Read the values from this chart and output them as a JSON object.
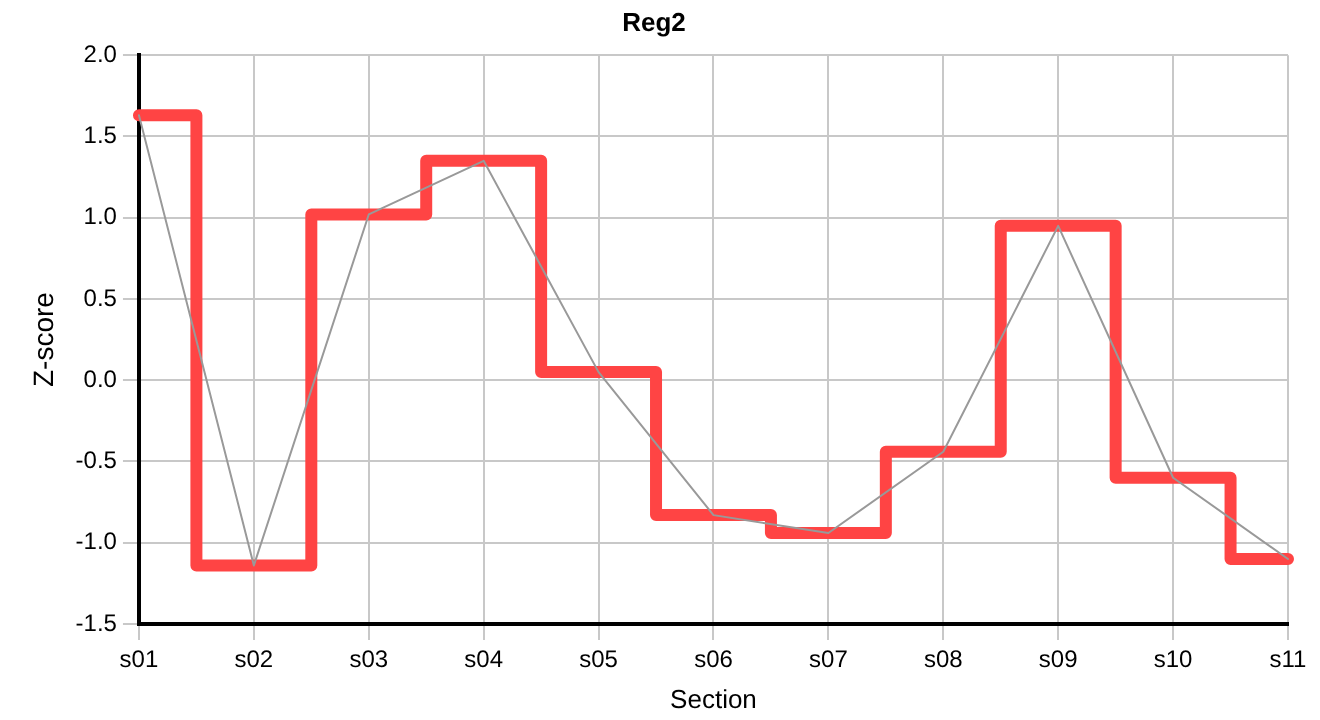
{
  "chart_data": {
    "type": "line",
    "title": "Reg2",
    "xlabel": "Section",
    "ylabel": "Z-score",
    "categories": [
      "s01",
      "s02",
      "s03",
      "s04",
      "s05",
      "s06",
      "s07",
      "s08",
      "s09",
      "s10",
      "s11"
    ],
    "series": [
      {
        "type": "line",
        "color": "#999999",
        "values": [
          1.63,
          -1.14,
          1.02,
          1.35,
          0.05,
          -0.83,
          -0.94,
          -0.44,
          0.95,
          -0.6,
          -1.1
        ]
      },
      {
        "type": "step",
        "color": "#ff4444",
        "values": [
          1.63,
          -1.14,
          1.02,
          1.35,
          0.05,
          -0.83,
          -0.94,
          -0.44,
          0.95,
          -0.6,
          -1.1
        ]
      }
    ],
    "ylim": [
      -1.5,
      2.0
    ],
    "yticks": [
      {
        "value": -1.5,
        "label": "-1.5"
      },
      {
        "value": -1,
        "label": "-1.0"
      },
      {
        "value": -0.5,
        "label": "-0.5"
      },
      {
        "value": 0,
        "label": "0.0"
      },
      {
        "value": 0.5,
        "label": "0.5"
      },
      {
        "value": 1,
        "label": "1.0"
      },
      {
        "value": 1.5,
        "label": "1.5"
      },
      {
        "value": 2,
        "label": "2.0"
      }
    ],
    "grid": true,
    "legend": false,
    "marker": "none"
  }
}
